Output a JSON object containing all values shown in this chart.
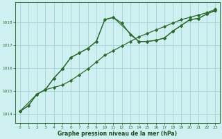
{
  "bg_color": "#cff0f0",
  "grid_color": "#aad8d8",
  "line_color": "#2d6a2d",
  "marker_color": "#2d6a2d",
  "xlabel": "Graphe pression niveau de la mer (hPa)",
  "xlabel_color": "#1a4d1a",
  "xlim": [
    -0.5,
    23.5
  ],
  "ylim": [
    1013.6,
    1018.85
  ],
  "yticks": [
    1014,
    1015,
    1016,
    1017,
    1018
  ],
  "xticks": [
    0,
    1,
    2,
    3,
    4,
    5,
    6,
    7,
    8,
    9,
    10,
    11,
    12,
    13,
    14,
    15,
    16,
    17,
    18,
    19,
    20,
    21,
    22,
    23
  ],
  "series1_x": [
    0,
    1,
    2,
    3,
    4,
    5,
    6,
    7,
    8,
    9,
    10,
    11,
    12,
    13,
    14,
    15,
    16,
    17,
    18,
    19,
    20,
    21,
    22,
    23
  ],
  "series1_y": [
    1014.1,
    1014.35,
    1014.85,
    1015.05,
    1015.15,
    1015.25,
    1015.45,
    1015.7,
    1015.95,
    1016.25,
    1016.55,
    1016.75,
    1016.95,
    1017.15,
    1017.35,
    1017.5,
    1017.65,
    1017.8,
    1017.95,
    1018.1,
    1018.2,
    1018.3,
    1018.4,
    1018.55
  ],
  "series2_x": [
    0,
    1,
    2,
    3,
    4,
    5,
    6,
    7,
    8,
    9,
    10,
    11,
    12,
    13,
    14,
    15,
    16,
    17,
    18,
    19,
    20,
    21,
    22,
    23
  ],
  "series2_y": [
    1014.1,
    1014.35,
    1014.85,
    1015.05,
    1015.55,
    1015.95,
    1016.45,
    1016.65,
    1016.85,
    1017.15,
    1018.1,
    1018.2,
    1017.95,
    1017.45,
    1017.15,
    1017.15,
    1017.2,
    1017.3,
    1017.6,
    1017.85,
    1018.1,
    1018.15,
    1018.35,
    1018.5
  ],
  "series3_x": [
    0,
    2,
    3,
    4,
    5,
    6,
    7,
    8,
    9,
    10,
    11,
    14,
    15,
    16,
    17,
    18,
    19,
    20,
    21,
    22,
    23
  ],
  "series3_y": [
    1014.1,
    1014.85,
    1015.05,
    1015.55,
    1015.95,
    1016.45,
    1016.65,
    1016.85,
    1017.15,
    1018.1,
    1018.2,
    1017.15,
    1017.15,
    1017.2,
    1017.3,
    1017.6,
    1017.85,
    1018.1,
    1018.15,
    1018.35,
    1018.5
  ]
}
